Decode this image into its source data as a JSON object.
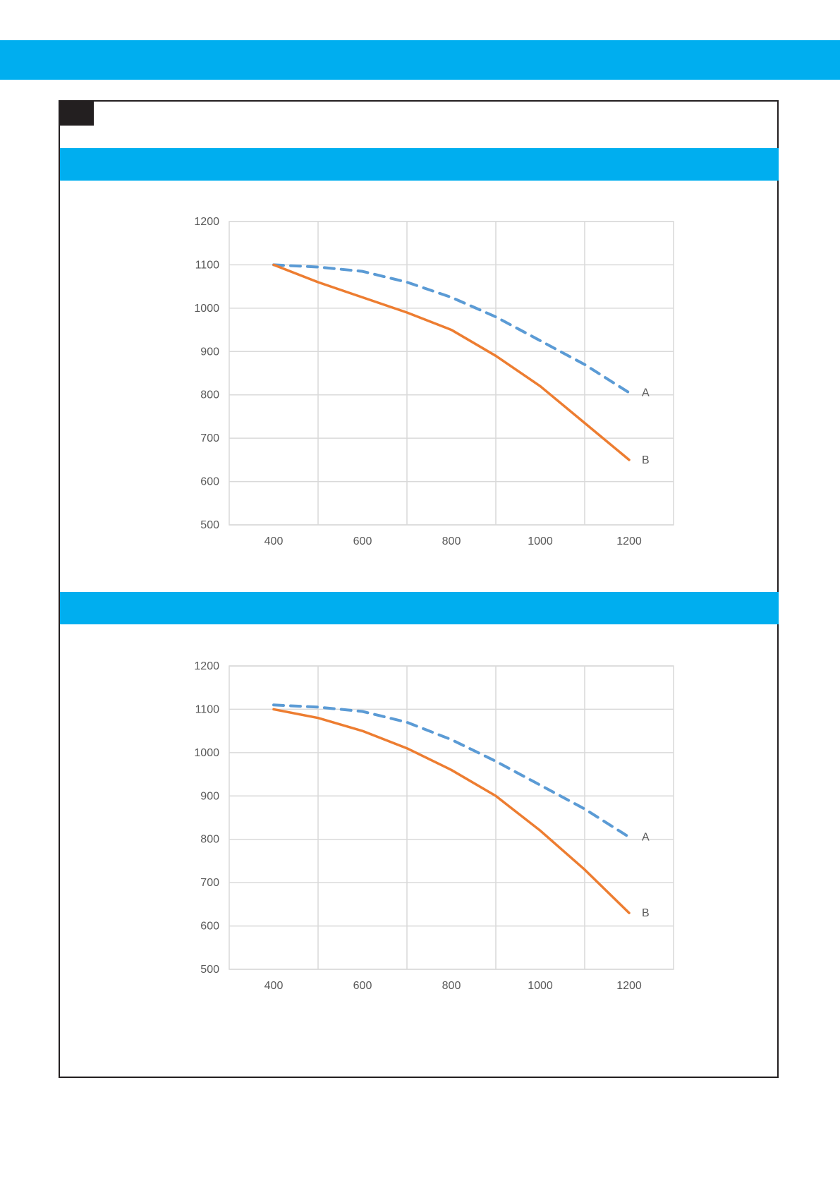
{
  "colors": {
    "band": "#00aeef",
    "frame": "#231f20",
    "series_a": "#5b9bd5",
    "series_b": "#ed7d31",
    "grid": "#d9d9d9",
    "tick_text": "#595959"
  },
  "chart_data": [
    {
      "type": "line",
      "title": "",
      "xlabel": "",
      "ylabel": "",
      "xlim": [
        300,
        1300
      ],
      "ylim": [
        500,
        1200
      ],
      "x_ticks": [
        400,
        600,
        800,
        1000,
        1200
      ],
      "y_ticks": [
        500,
        600,
        700,
        800,
        900,
        1000,
        1100,
        1200
      ],
      "grid": true,
      "legend": "none (end-of-line labels)",
      "series": [
        {
          "name": "A",
          "style": "dashed",
          "color": "#5b9bd5",
          "x": [
            400,
            500,
            600,
            700,
            800,
            900,
            1000,
            1100,
            1200
          ],
          "y": [
            1100,
            1095,
            1085,
            1060,
            1025,
            980,
            925,
            870,
            805
          ]
        },
        {
          "name": "B",
          "style": "solid",
          "color": "#ed7d31",
          "x": [
            400,
            500,
            600,
            700,
            800,
            900,
            1000,
            1100,
            1200
          ],
          "y": [
            1100,
            1060,
            1025,
            990,
            950,
            890,
            820,
            735,
            650
          ]
        }
      ]
    },
    {
      "type": "line",
      "title": "",
      "xlabel": "",
      "ylabel": "",
      "xlim": [
        300,
        1300
      ],
      "ylim": [
        500,
        1200
      ],
      "x_ticks": [
        400,
        600,
        800,
        1000,
        1200
      ],
      "y_ticks": [
        500,
        600,
        700,
        800,
        900,
        1000,
        1100,
        1200
      ],
      "grid": true,
      "legend": "none (end-of-line labels)",
      "series": [
        {
          "name": "A",
          "style": "dashed",
          "color": "#5b9bd5",
          "x": [
            400,
            500,
            600,
            700,
            800,
            900,
            1000,
            1100,
            1200
          ],
          "y": [
            1110,
            1105,
            1095,
            1070,
            1030,
            980,
            925,
            870,
            805
          ]
        },
        {
          "name": "B",
          "style": "solid",
          "color": "#ed7d31",
          "x": [
            400,
            500,
            600,
            700,
            800,
            900,
            1000,
            1100,
            1200
          ],
          "y": [
            1100,
            1080,
            1050,
            1010,
            960,
            900,
            820,
            730,
            630
          ]
        }
      ]
    }
  ]
}
